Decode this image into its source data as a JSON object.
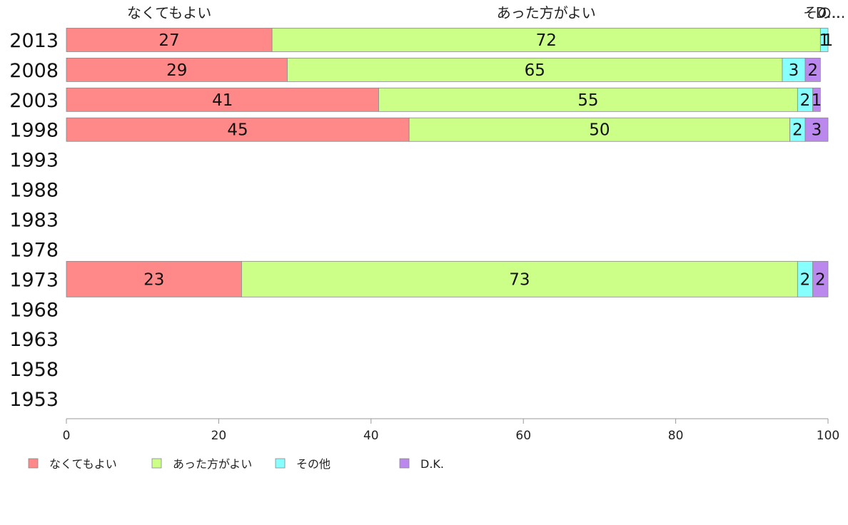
{
  "chart_data": {
    "type": "bar",
    "orientation": "horizontal",
    "stacked": true,
    "categories": [
      "2013",
      "2008",
      "2003",
      "1998",
      "1993",
      "1988",
      "1983",
      "1978",
      "1973",
      "1968",
      "1963",
      "1958",
      "1953"
    ],
    "series": [
      {
        "name": "なくてもよい",
        "color": "#ff8888",
        "values": [
          27,
          29,
          41,
          45,
          null,
          null,
          null,
          null,
          23,
          null,
          null,
          null,
          null
        ]
      },
      {
        "name": "あった方がよい",
        "color": "#ccff88",
        "values": [
          72,
          65,
          55,
          50,
          null,
          null,
          null,
          null,
          73,
          null,
          null,
          null,
          null
        ]
      },
      {
        "name": "その他",
        "color": "#88ffff",
        "values": [
          1,
          3,
          2,
          2,
          null,
          null,
          null,
          null,
          2,
          null,
          null,
          null,
          null
        ]
      },
      {
        "name": "D.K.",
        "color": "#bb88ee",
        "values": [
          1,
          2,
          1,
          3,
          null,
          null,
          null,
          null,
          2,
          null,
          null,
          null,
          null
        ]
      }
    ],
    "top_labels": [
      "なくてもよい",
      "あった方がよい",
      "その...",
      "D..."
    ],
    "xlim": [
      0,
      100
    ],
    "xticks": [
      "0",
      "20",
      "40",
      "60",
      "80",
      "100"
    ],
    "grid": false,
    "legend_position": "bottom-left"
  }
}
